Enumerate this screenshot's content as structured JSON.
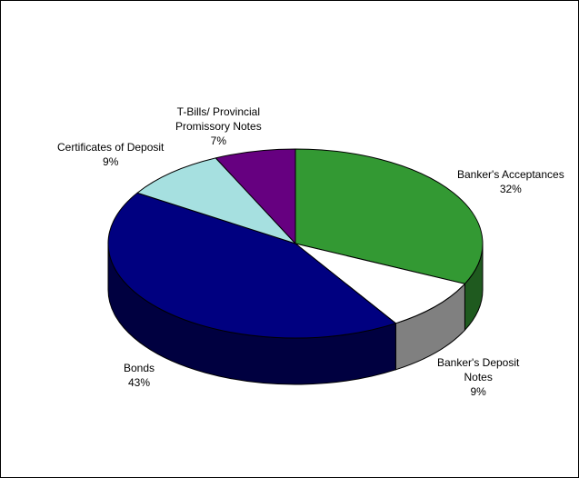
{
  "chart_data": {
    "type": "pie",
    "style": "3d",
    "slices": [
      {
        "name": "Banker's Acceptances",
        "label_lines": [
          "Banker's Acceptances"
        ],
        "percent": "32%",
        "value": 32,
        "color": "#339933",
        "side_color": "#1f5a1f"
      },
      {
        "name": "Banker's Deposit Notes",
        "label_lines": [
          "Banker's Deposit",
          "Notes"
        ],
        "percent": "9%",
        "value": 9,
        "color": "#ffffff",
        "side_color": "#808080"
      },
      {
        "name": "Bonds",
        "label_lines": [
          "Bonds"
        ],
        "percent": "43%",
        "value": 43,
        "color": "#000080",
        "side_color": "#000040"
      },
      {
        "name": "Certificates of Deposit",
        "label_lines": [
          "Certificates of Deposit"
        ],
        "percent": "9%",
        "value": 9,
        "color": "#a6e0e0",
        "side_color": "#5a8080"
      },
      {
        "name": "T-Bills/ Provincial Promissory Notes",
        "label_lines": [
          "T-Bills/ Provincial",
          "Promissory Notes"
        ],
        "percent": "7%",
        "value": 7,
        "color": "#660080",
        "side_color": "#330040"
      }
    ]
  }
}
